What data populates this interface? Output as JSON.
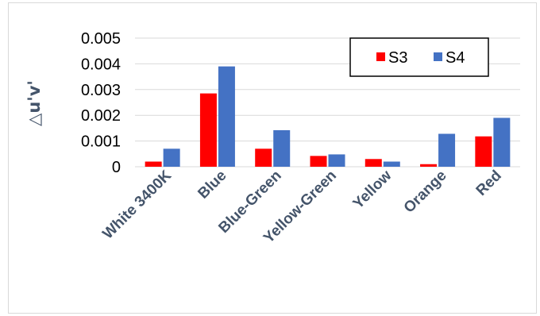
{
  "chart_data": {
    "type": "bar",
    "title": "",
    "xlabel": "",
    "ylabel": "△u'v'",
    "categories": [
      "White 3400K",
      "Blue",
      "Blue-Green",
      "Yellow-Green",
      "Yellow",
      "Orange",
      "Red"
    ],
    "series": [
      {
        "name": "S3",
        "color": "#ff0000",
        "values": [
          0.0002,
          0.00285,
          0.0007,
          0.00042,
          0.0003,
          0.0001,
          0.00118
        ]
      },
      {
        "name": "S4",
        "color": "#4472c4",
        "values": [
          0.0007,
          0.0039,
          0.00142,
          0.00048,
          0.0002,
          0.00128,
          0.0019
        ]
      }
    ],
    "ylim": [
      0,
      0.005
    ],
    "yticks": [
      "0",
      "0.001",
      "0.002",
      "0.003",
      "0.004",
      "0.005"
    ],
    "grid": true,
    "legend_position": "top-right"
  }
}
